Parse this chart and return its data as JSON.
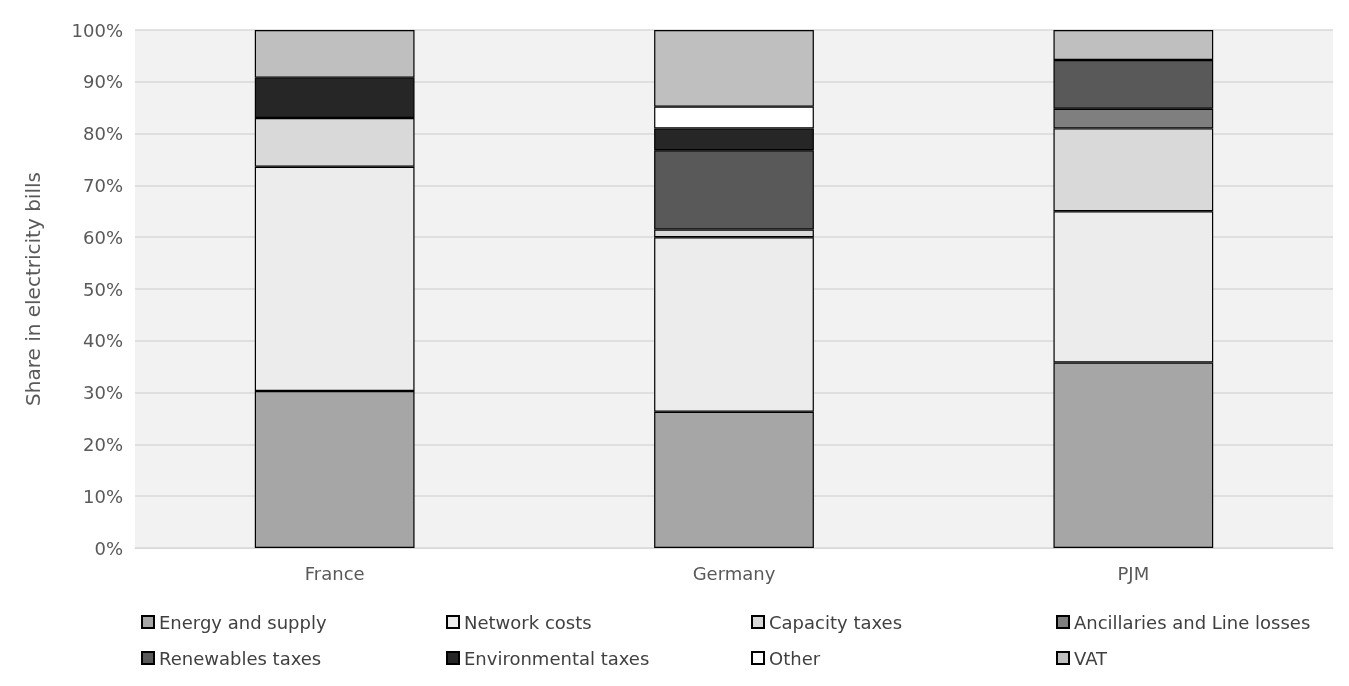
{
  "chart_data": {
    "type": "bar",
    "stacked": true,
    "ylabel": "Share in electricity bills",
    "categories": [
      "France",
      "Germany",
      "PJM"
    ],
    "series": [
      {
        "name": "Energy and supply",
        "color": "#a6a6a6",
        "values": [
          30.3,
          26.3,
          35.8
        ]
      },
      {
        "name": "Network costs",
        "color": "#ececec",
        "values": [
          43.3,
          33.7,
          29.2
        ]
      },
      {
        "name": "Capacity taxes",
        "color": "#d9d9d9",
        "values": [
          9.4,
          1.5,
          16.0
        ]
      },
      {
        "name": "Ancillaries and Line losses",
        "color": "#7f7f7f",
        "values": [
          null,
          null,
          3.8
        ]
      },
      {
        "name": "Renewables taxes",
        "color": "#595959",
        "values": [
          null,
          15.3,
          9.4
        ]
      },
      {
        "name": "Environmental taxes",
        "color": "#262626",
        "values": [
          7.8,
          4.2,
          null
        ]
      },
      {
        "name": "Other",
        "color": "#ffffff",
        "values": [
          null,
          4.2,
          null
        ]
      },
      {
        "name": "VAT",
        "color": "#bfbfbf",
        "values": [
          9.2,
          14.8,
          5.8
        ]
      }
    ],
    "ylim": [
      0,
      100
    ],
    "yticks": [
      {
        "value": 0,
        "label": "0%"
      },
      {
        "value": 10,
        "label": "10%"
      },
      {
        "value": 20,
        "label": "20%"
      },
      {
        "value": 30,
        "label": "30%"
      },
      {
        "value": 40,
        "label": "40%"
      },
      {
        "value": 50,
        "label": "50%"
      },
      {
        "value": 60,
        "label": "60%"
      },
      {
        "value": 70,
        "label": "70%"
      },
      {
        "value": 80,
        "label": "80%"
      },
      {
        "value": 90,
        "label": "90%"
      },
      {
        "value": 100,
        "label": "100%"
      }
    ],
    "grid": "y",
    "legend": "bottom"
  }
}
